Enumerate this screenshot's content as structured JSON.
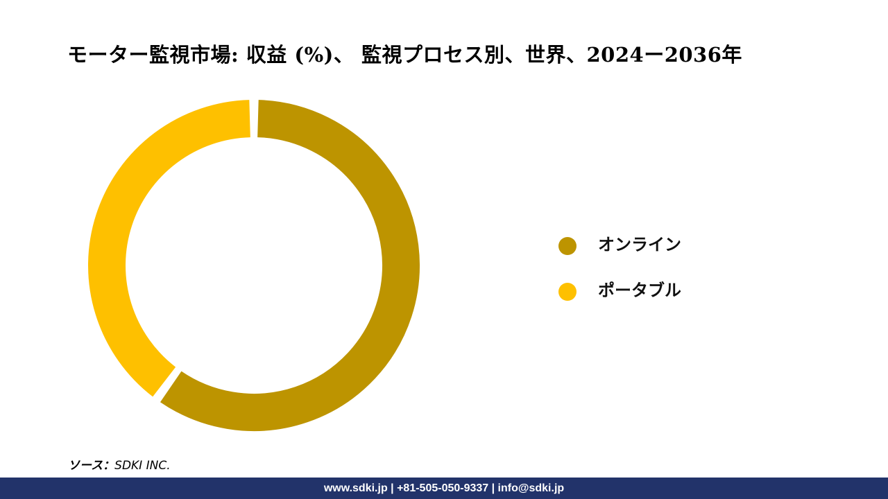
{
  "title": "モーター監視市場: 収益 (%)、 監視プロセス別、世界、2024ー2036年",
  "chart_data": {
    "type": "pie",
    "variant": "donut",
    "title": "モーター監視市場: 収益 (%)、 監視プロセス別、世界、2024ー2036年",
    "categories": [
      "オンライン",
      "ポータブル"
    ],
    "values": [
      60,
      40
    ],
    "colors": [
      "#bd9400",
      "#fec000"
    ],
    "legend_position": "right"
  },
  "legend": {
    "items": [
      {
        "label": "オンライン",
        "color": "#bd9400"
      },
      {
        "label": "ポータブル",
        "color": "#fec000"
      }
    ]
  },
  "source": {
    "key": "ソース：",
    "value": "SDKI INC."
  },
  "footer": {
    "text": "www.sdki.jp | +81-505-050-9337 | info@sdki.jp"
  }
}
